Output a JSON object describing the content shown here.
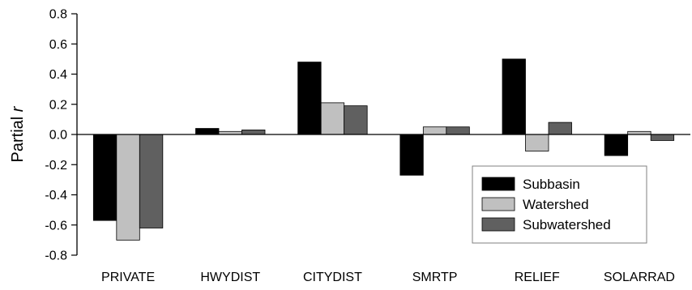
{
  "chart_data": {
    "type": "bar",
    "title": "",
    "xlabel": "",
    "ylabel": "Partial",
    "ylabel_italic_suffix": "r",
    "ylim": [
      -0.8,
      0.8
    ],
    "yticks": [
      -0.8,
      -0.6,
      -0.4,
      -0.2,
      0.0,
      0.2,
      0.4,
      0.6,
      0.8
    ],
    "ytick_labels": [
      "-0.8",
      "-0.6",
      "-0.4",
      "-0.2",
      "0.0",
      "0.2",
      "0.4",
      "0.6",
      "0.8"
    ],
    "categories": [
      "PRIVATE",
      "HWYDIST",
      "CITYDIST",
      "SMRTP",
      "RELIEF",
      "SOLARRAD"
    ],
    "series": [
      {
        "name": "Subbasin",
        "color": "#000000",
        "values": [
          -0.57,
          0.04,
          0.48,
          -0.27,
          0.5,
          -0.14
        ]
      },
      {
        "name": "Watershed",
        "color": "#c0c0c0",
        "values": [
          -0.7,
          0.02,
          0.21,
          0.05,
          -0.11,
          0.02
        ]
      },
      {
        "name": "Subwatershed",
        "color": "#606060",
        "values": [
          -0.62,
          0.03,
          0.19,
          0.05,
          0.08,
          -0.04
        ]
      }
    ],
    "grid": false,
    "legend_position": "bottom-right"
  }
}
